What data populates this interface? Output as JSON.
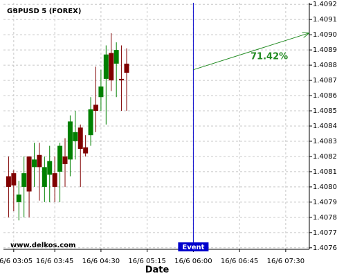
{
  "chart_data": {
    "type": "candlestick",
    "title": "GBPUSD 5 (FOREX)",
    "watermark": "www.delkos.com",
    "x_label": "Date",
    "x": [
      180,
      185,
      190,
      195,
      200,
      205,
      210,
      215,
      220,
      225,
      230,
      235,
      240,
      245,
      250,
      255,
      260,
      265,
      270,
      275,
      280,
      285,
      290,
      295
    ],
    "open": [
      1.40807,
      1.40809,
      1.4079,
      1.408,
      1.4082,
      1.40813,
      1.40821,
      1.408,
      1.40808,
      1.40809,
      1.4081,
      1.4082,
      1.40818,
      1.4083,
      1.40839,
      1.40826,
      1.40834,
      1.40854,
      1.40859,
      1.40871,
      1.40888,
      1.40881,
      1.40871,
      1.40881
    ],
    "high": [
      1.4082,
      1.40811,
      1.40804,
      1.4082,
      1.4082,
      1.40829,
      1.40829,
      1.4082,
      1.40827,
      1.4082,
      1.40829,
      1.40832,
      1.40847,
      1.4085,
      1.40841,
      1.40834,
      1.40859,
      1.40879,
      1.40877,
      1.40893,
      1.40901,
      1.40895,
      1.40893,
      1.40891
    ],
    "low": [
      1.4078,
      1.40784,
      1.40778,
      1.4078,
      1.4078,
      1.408,
      1.40791,
      1.4079,
      1.4079,
      1.4079,
      1.4079,
      1.408,
      1.40807,
      1.40818,
      1.408,
      1.4082,
      1.40827,
      1.40836,
      1.4085,
      1.40841,
      1.40863,
      1.40859,
      1.4085,
      1.4085
    ],
    "close": [
      1.408,
      1.40801,
      1.40795,
      1.40809,
      1.40797,
      1.40818,
      1.40813,
      1.40813,
      1.40817,
      1.408,
      1.40827,
      1.40815,
      1.40843,
      1.40836,
      1.40825,
      1.40822,
      1.40851,
      1.4085,
      1.40866,
      1.40887,
      1.4087,
      1.4089,
      1.4087,
      1.40875
    ],
    "up_color": "#008000",
    "down_color": "#800000",
    "event": {
      "x": 360,
      "label": "Event",
      "color": "#0000cc"
    },
    "arrow": {
      "x": [
        360,
        473
      ],
      "y": [
        1.40877,
        1.40901
      ],
      "label": "71.42%",
      "color": "#228b22"
    },
    "xlim": [
      175,
      473
    ],
    "xticks": [
      {
        "value": 185,
        "label": "16/6 03:05"
      },
      {
        "value": 225,
        "label": "16/6 03:45"
      },
      {
        "value": 270,
        "label": "16/6 04:30"
      },
      {
        "value": 315,
        "label": "16/6 05:15"
      },
      {
        "value": 360,
        "label": "16/6 06:00"
      },
      {
        "value": 405,
        "label": "16/6 06:45"
      },
      {
        "value": 450,
        "label": "16/6 07:30"
      }
    ],
    "ylim": [
      1.40759,
      1.40921
    ],
    "yticks": [
      1.4076,
      1.4077,
      1.4078,
      1.4079,
      {
        "value": 1.408,
        "label": "1.4080"
      },
      1.4081,
      1.4082,
      1.4083,
      1.4084,
      1.4085,
      1.4086,
      1.4087,
      1.4088,
      1.4089,
      {
        "value": 1.409,
        "label": "1.4090"
      },
      1.4091,
      1.4092
    ],
    "grid": true
  }
}
